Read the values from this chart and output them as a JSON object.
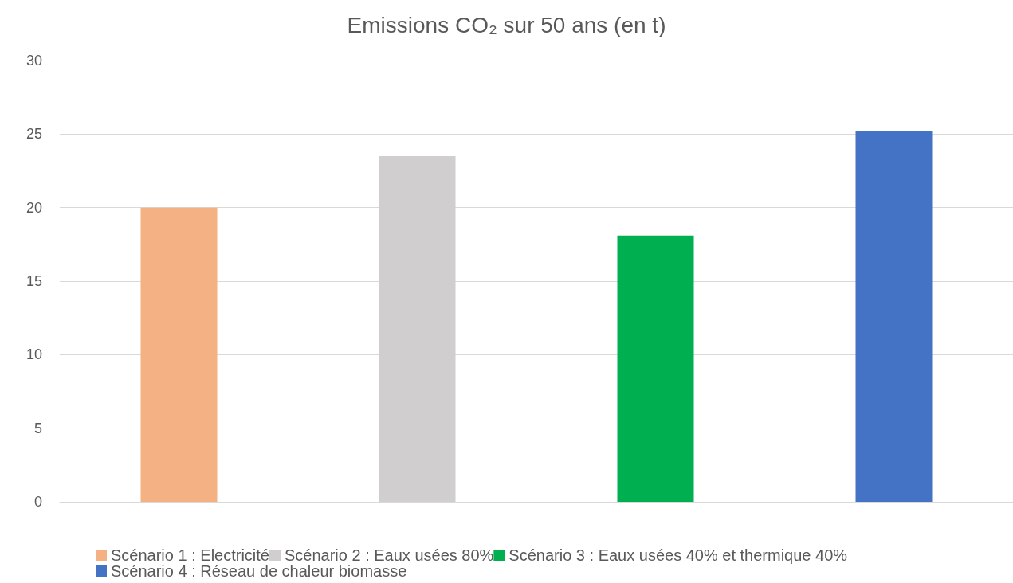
{
  "chart_data": {
    "type": "bar",
    "title": "Emissions CO₂ sur 50 ans (en t)",
    "categories": [
      null,
      null,
      null,
      null
    ],
    "series": [
      {
        "name": "Scénario 1 : Electricité",
        "color": "#f4b183",
        "values": [
          20,
          null,
          null,
          null
        ]
      },
      {
        "name": "Scénario 2 : Eaux usées 80%",
        "color": "#d0cece",
        "values": [
          null,
          23.5,
          null,
          null
        ]
      },
      {
        "name": "Scénario 3 : Eaux usées 40% et thermique 40%",
        "color": "#00b050",
        "values": [
          null,
          null,
          18.1,
          null
        ]
      },
      {
        "name": "Scénario 4 : Réseau de chaleur biomasse",
        "color": "#4472c4",
        "values": [
          null,
          null,
          null,
          25.2
        ]
      }
    ],
    "ylim": [
      0,
      30
    ],
    "yticks": [
      0,
      5,
      10,
      15,
      20,
      25,
      30
    ],
    "grid": "y",
    "legend": "bottom"
  }
}
